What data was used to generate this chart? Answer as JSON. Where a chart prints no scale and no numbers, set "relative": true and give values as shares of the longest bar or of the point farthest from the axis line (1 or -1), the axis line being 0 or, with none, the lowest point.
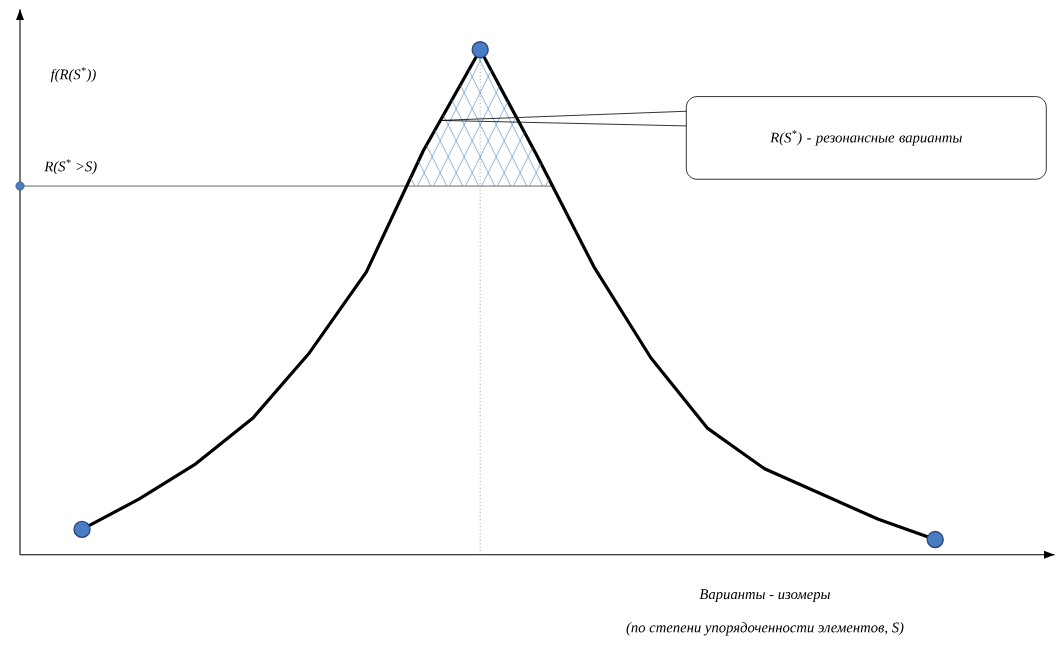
{
  "chart_data": {
    "type": "line",
    "relative": true,
    "ylabel": "f(R(S$^{*}$))",
    "xlabel": "Варианты - изомеры",
    "categories": [
      null,
      null,
      null,
      null,
      null,
      null,
      null,
      null,
      null,
      null,
      null,
      null,
      null,
      null,
      null,
      null
    ],
    "series": [
      {
        "color": "#000000",
        "values": [
          0.05,
          0.11,
          0.18,
          0.27,
          0.4,
          0.56,
          0.8,
          1,
          0.79,
          0.57,
          0.39,
          0.25,
          0.17,
          0.12,
          0.07,
          0.03
        ]
      }
    ],
    "ref_lines": [
      {
        "axis": "y",
        "value": 0.73,
        "label": "R(S$^{*}$ >S)",
        "color": "#404040"
      }
    ],
    "annotations": [
      "R(S$^{*}$) - резонансные варианты",
      "(по степени упорядоченности элементов, S)"
    ]
  }
}
